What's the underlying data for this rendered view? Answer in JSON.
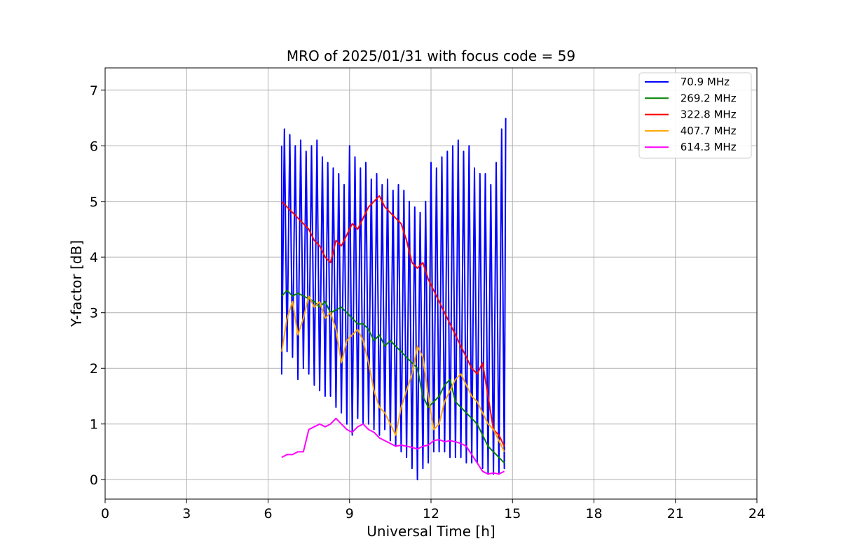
{
  "chart_data": {
    "type": "line",
    "title": "MRO of 2025/01/31 with focus code = 59",
    "xlabel": "Universal Time [h]",
    "ylabel": "Y-factor [dB]",
    "xlim": [
      0,
      24
    ],
    "ylim": [
      -0.35,
      7.4
    ],
    "xticks": [
      0,
      3,
      6,
      9,
      12,
      15,
      18,
      21,
      24
    ],
    "yticks": [
      0,
      1,
      2,
      3,
      4,
      5,
      6,
      7
    ],
    "grid": true,
    "legend_position": "top-right",
    "series": [
      {
        "name": " 70.9 MHz",
        "color": "#0000ff",
        "x": [
          6.5,
          6.6,
          6.8,
          7.0,
          7.2,
          7.4,
          7.6,
          7.8,
          8.0,
          8.2,
          8.4,
          8.6,
          8.8,
          9.0,
          9.2,
          9.4,
          9.6,
          9.8,
          10.0,
          10.2,
          10.4,
          10.6,
          10.8,
          11.0,
          11.2,
          11.4,
          11.6,
          11.8,
          12.0,
          12.2,
          12.4,
          12.6,
          12.8,
          13.0,
          13.2,
          13.4,
          13.6,
          13.8,
          14.0,
          14.2,
          14.4,
          14.6,
          14.75
        ],
        "values": [
          6.0,
          6.3,
          6.2,
          6.0,
          6.1,
          5.9,
          6.0,
          6.1,
          5.8,
          5.7,
          5.6,
          5.5,
          5.3,
          6.0,
          5.8,
          5.6,
          5.7,
          5.4,
          5.5,
          5.3,
          5.4,
          5.2,
          5.3,
          5.2,
          5.0,
          4.9,
          4.8,
          5.0,
          5.7,
          5.6,
          5.8,
          5.9,
          6.0,
          6.1,
          5.9,
          6.0,
          5.6,
          5.5,
          5.5,
          5.3,
          5.7,
          6.3,
          6.5
        ],
        "dips_x": [
          6.5,
          6.7,
          6.9,
          7.1,
          7.3,
          7.5,
          7.7,
          7.9,
          8.1,
          8.3,
          8.5,
          8.7,
          8.9,
          9.1,
          9.3,
          9.5,
          9.7,
          9.9,
          10.1,
          10.3,
          10.5,
          10.7,
          10.9,
          11.1,
          11.3,
          11.5,
          11.7,
          11.9,
          12.1,
          12.3,
          12.5,
          12.7,
          12.9,
          13.1,
          13.3,
          13.5,
          13.7,
          13.9,
          14.1,
          14.3,
          14.5,
          14.7
        ],
        "dips_y": [
          1.9,
          2.3,
          2.2,
          1.8,
          2.0,
          1.9,
          1.7,
          1.6,
          1.5,
          1.5,
          1.3,
          1.2,
          1.0,
          0.8,
          1.1,
          1.0,
          1.0,
          0.9,
          0.8,
          0.9,
          0.7,
          0.6,
          0.5,
          0.4,
          0.2,
          0.0,
          0.2,
          0.3,
          0.5,
          0.5,
          0.5,
          0.4,
          0.4,
          0.4,
          0.3,
          0.3,
          0.3,
          0.2,
          0.1,
          0.1,
          0.1,
          0.2
        ]
      },
      {
        "name": " 269.2 MHz",
        "color": "#008000",
        "x": [
          6.5,
          6.7,
          6.9,
          7.1,
          7.3,
          7.5,
          7.7,
          7.9,
          8.1,
          8.3,
          8.5,
          8.7,
          8.9,
          9.1,
          9.3,
          9.5,
          9.7,
          9.9,
          10.1,
          10.3,
          10.5,
          10.7,
          10.9,
          11.1,
          11.3,
          11.5,
          11.7,
          11.9,
          12.1,
          12.3,
          12.5,
          12.7,
          12.9,
          13.1,
          13.3,
          13.5,
          13.7,
          13.9,
          14.1,
          14.3,
          14.5,
          14.7
        ],
        "values": [
          3.3,
          3.4,
          3.3,
          3.35,
          3.3,
          3.25,
          3.2,
          3.1,
          3.2,
          3.0,
          3.05,
          3.1,
          3.0,
          2.9,
          2.8,
          2.8,
          2.7,
          2.5,
          2.6,
          2.4,
          2.5,
          2.4,
          2.3,
          2.2,
          2.1,
          2.0,
          1.5,
          1.3,
          1.4,
          1.5,
          1.7,
          1.8,
          1.4,
          1.3,
          1.2,
          1.1,
          1.0,
          0.8,
          0.6,
          0.5,
          0.4,
          0.3
        ]
      },
      {
        "name": " 322.8 MHz",
        "color": "#ff0000",
        "x": [
          6.5,
          6.7,
          6.9,
          7.1,
          7.3,
          7.5,
          7.7,
          7.9,
          8.1,
          8.3,
          8.5,
          8.7,
          8.9,
          9.1,
          9.3,
          9.5,
          9.7,
          9.9,
          10.1,
          10.3,
          10.5,
          10.7,
          10.9,
          11.1,
          11.3,
          11.5,
          11.7,
          11.9,
          12.1,
          12.3,
          12.5,
          12.7,
          12.9,
          13.1,
          13.3,
          13.5,
          13.7,
          13.9,
          14.1,
          14.3,
          14.5,
          14.7
        ],
        "values": [
          5.0,
          4.9,
          4.8,
          4.7,
          4.6,
          4.5,
          4.3,
          4.2,
          4.0,
          3.9,
          4.3,
          4.2,
          4.4,
          4.6,
          4.5,
          4.7,
          4.9,
          5.0,
          5.1,
          4.9,
          4.8,
          4.7,
          4.6,
          4.3,
          3.9,
          3.8,
          3.9,
          3.6,
          3.4,
          3.2,
          3.0,
          2.8,
          2.6,
          2.4,
          2.2,
          2.0,
          1.9,
          2.1,
          1.5,
          0.9,
          0.8,
          0.6
        ]
      },
      {
        "name": " 407.7 MHz",
        "color": "#ffa500",
        "x": [
          6.5,
          6.7,
          6.9,
          7.1,
          7.3,
          7.5,
          7.7,
          7.9,
          8.1,
          8.3,
          8.5,
          8.7,
          8.9,
          9.1,
          9.3,
          9.5,
          9.7,
          9.9,
          10.1,
          10.3,
          10.5,
          10.7,
          10.9,
          11.1,
          11.3,
          11.5,
          11.7,
          11.9,
          12.1,
          12.3,
          12.5,
          12.7,
          12.9,
          13.1,
          13.3,
          13.5,
          13.7,
          13.9,
          14.1,
          14.3,
          14.5,
          14.7
        ],
        "values": [
          2.3,
          2.9,
          3.2,
          2.6,
          2.9,
          3.3,
          3.1,
          3.2,
          2.9,
          3.0,
          2.7,
          2.1,
          2.5,
          2.6,
          2.7,
          2.5,
          2.1,
          1.6,
          1.3,
          1.2,
          1.0,
          0.8,
          1.3,
          1.6,
          1.9,
          2.4,
          2.2,
          1.5,
          0.9,
          1.0,
          1.4,
          1.6,
          1.8,
          1.9,
          1.7,
          1.5,
          1.4,
          1.2,
          1.0,
          0.9,
          0.7,
          0.5
        ]
      },
      {
        "name": " 614.3 MHz",
        "color": "#ff00ff",
        "x": [
          6.5,
          6.7,
          6.9,
          7.1,
          7.3,
          7.5,
          7.7,
          7.9,
          8.1,
          8.3,
          8.5,
          8.7,
          8.9,
          9.1,
          9.3,
          9.5,
          9.7,
          9.9,
          10.1,
          10.3,
          10.5,
          10.7,
          10.9,
          11.1,
          11.3,
          11.5,
          11.7,
          11.9,
          12.1,
          12.3,
          12.5,
          12.7,
          12.9,
          13.1,
          13.3,
          13.5,
          13.7,
          13.9,
          14.1,
          14.3,
          14.5,
          14.7
        ],
        "values": [
          0.4,
          0.45,
          0.45,
          0.5,
          0.5,
          0.9,
          0.95,
          1.0,
          0.95,
          1.0,
          1.1,
          1.0,
          0.9,
          0.85,
          0.95,
          1.0,
          0.9,
          0.85,
          0.75,
          0.7,
          0.65,
          0.6,
          0.62,
          0.6,
          0.58,
          0.55,
          0.6,
          0.62,
          0.7,
          0.72,
          0.68,
          0.7,
          0.68,
          0.65,
          0.6,
          0.45,
          0.3,
          0.15,
          0.1,
          0.12,
          0.1,
          0.15
        ]
      }
    ]
  }
}
